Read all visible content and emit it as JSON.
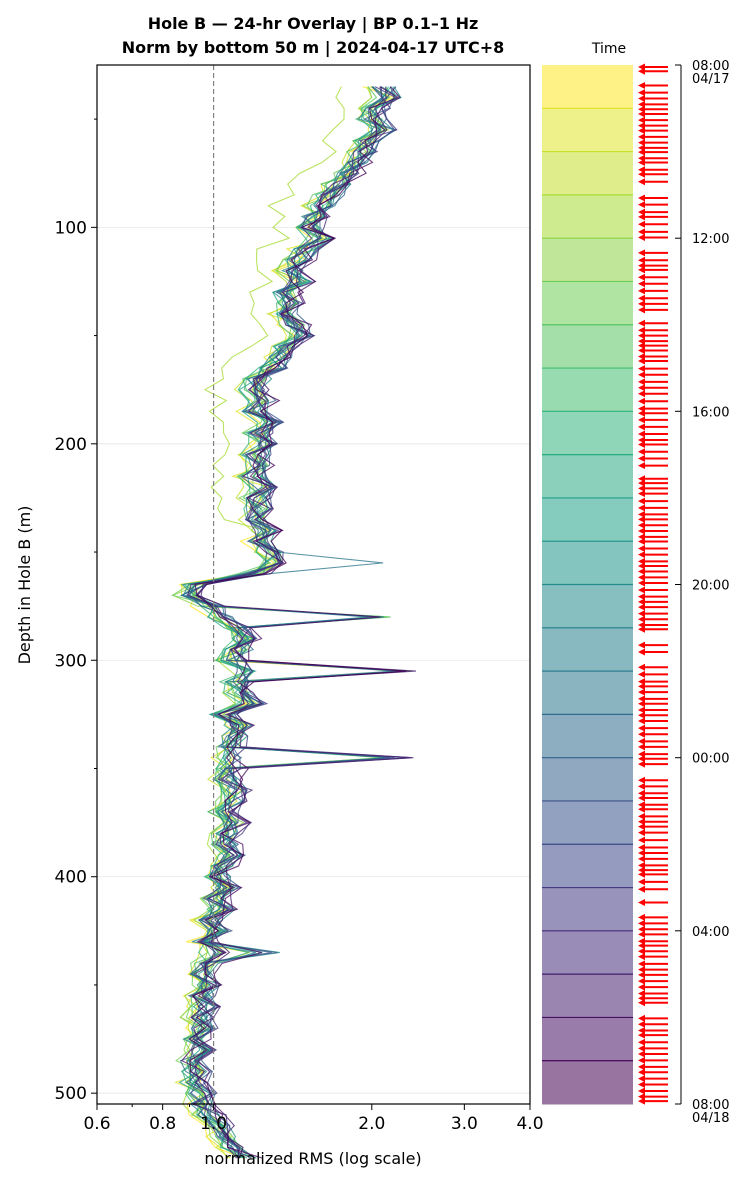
{
  "chart_data": {
    "type": "line",
    "title_line1": "Hole B — 24-hr Overlay  |  BP 0.1–1 Hz",
    "title_line2": "Norm by bottom 50 m  |  2024-04-17 UTC+8",
    "xlabel": "normalized RMS  (log scale)",
    "ylabel": "Depth in Hole B (m)",
    "x_scale": "log",
    "xlim": [
      0.6,
      4.0
    ],
    "ylim": [
      505,
      25
    ],
    "x_ticks": [
      {
        "value": 0.6,
        "label": "0.6"
      },
      {
        "value": 0.8,
        "label": "0.8"
      },
      {
        "value": 1.0,
        "label": "1.0"
      },
      {
        "value": 2.0,
        "label": "2.0"
      },
      {
        "value": 3.0,
        "label": "3.0"
      },
      {
        "value": 4.0,
        "label": "4.0"
      }
    ],
    "y_ticks": [
      {
        "value": 100,
        "label": "100"
      },
      {
        "value": 200,
        "label": "200"
      },
      {
        "value": 300,
        "label": "300"
      },
      {
        "value": 400,
        "label": "400"
      },
      {
        "value": 500,
        "label": "500"
      }
    ],
    "reference_line_x": 1.0,
    "grid": "horizontal",
    "n_traces": 24,
    "depth_start": 35,
    "depth_step": 5,
    "representative_profile": [
      2.1,
      2.15,
      2.05,
      2.0,
      2.08,
      1.98,
      1.92,
      1.86,
      1.8,
      1.72,
      1.66,
      1.6,
      1.56,
      1.52,
      1.6,
      1.5,
      1.46,
      1.4,
      1.45,
      1.38,
      1.4,
      1.35,
      1.42,
      1.46,
      1.38,
      1.35,
      1.3,
      1.22,
      1.18,
      1.24,
      1.2,
      1.28,
      1.22,
      1.25,
      1.2,
      1.22,
      1.18,
      1.24,
      1.2,
      1.22,
      1.2,
      1.25,
      1.22,
      1.28,
      1.3,
      1.2,
      0.92,
      0.9,
      0.98,
      1.02,
      1.1,
      1.15,
      1.12,
      1.08,
      1.15,
      1.1,
      1.12,
      1.18,
      1.05,
      1.12,
      1.1,
      1.08,
      1.06,
      1.08,
      1.05,
      1.1,
      1.08,
      1.04,
      1.1,
      1.06,
      1.05,
      1.08,
      1.04,
      1.02,
      1.06,
      1.0,
      1.04,
      0.98,
      1.02,
      0.96,
      1.0,
      0.97,
      0.95,
      0.98,
      0.94,
      0.96,
      0.93,
      0.95,
      0.92,
      0.94,
      0.9,
      0.93,
      0.92,
      0.95,
      0.94,
      0.98,
      1.02,
      1.05,
      1.1,
      1.15
    ],
    "spikes": [
      {
        "depth": 255,
        "value": 2.2
      },
      {
        "depth": 280,
        "value": 2.3
      },
      {
        "depth": 307,
        "value": 2.55
      },
      {
        "depth": 343,
        "value": 2.45
      },
      {
        "depth": 436,
        "value": 1.36
      }
    ],
    "colorbar": {
      "label": "Time",
      "colormap": "viridis",
      "ticks": [
        {
          "frac": 0.0,
          "label": "08:00",
          "sublabel": "04/17"
        },
        {
          "frac": 0.1667,
          "label": "12:00"
        },
        {
          "frac": 0.3333,
          "label": "16:00"
        },
        {
          "frac": 0.5,
          "label": "20:00"
        },
        {
          "frac": 0.6667,
          "label": "00:00"
        },
        {
          "frac": 0.8333,
          "label": "04:00"
        },
        {
          "frac": 1.0,
          "label": "08:00",
          "sublabel": "04/18"
        }
      ],
      "n_bands": 24,
      "arrow_color": "#ff0000"
    }
  }
}
